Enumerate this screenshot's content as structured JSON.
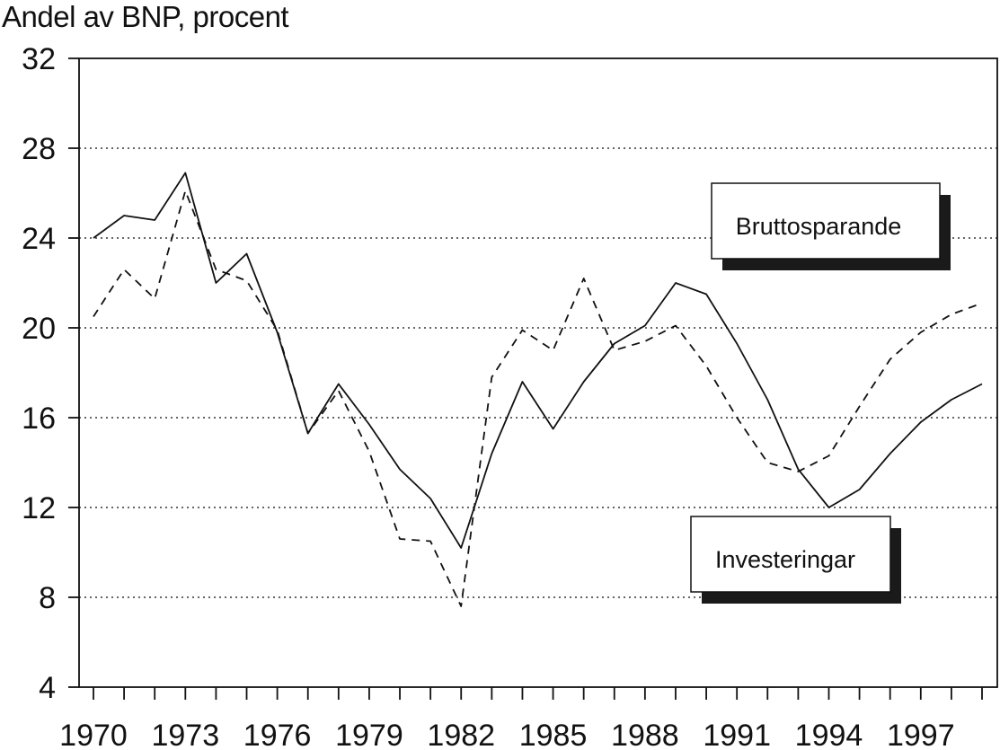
{
  "chart_data": {
    "type": "line",
    "ylabel": "Andel av BNP, procent",
    "ylim": [
      4,
      32
    ],
    "yticks": [
      "4",
      "8",
      "12",
      "16",
      "20",
      "24",
      "28",
      "32"
    ],
    "xticks": [
      "1970",
      "1973",
      "1976",
      "1979",
      "1982",
      "1985",
      "1988",
      "1991",
      "1994",
      "1997"
    ],
    "grid": "horizontal dotted",
    "x": [
      1970,
      1971,
      1972,
      1973,
      1974,
      1975,
      1976,
      1977,
      1978,
      1979,
      1980,
      1981,
      1982,
      1983,
      1984,
      1985,
      1986,
      1987,
      1988,
      1989,
      1990,
      1991,
      1992,
      1993,
      1994,
      1995,
      1996,
      1997,
      1998,
      1999
    ],
    "series": [
      {
        "name": "Bruttosparande",
        "style": "solid",
        "values": [
          24.0,
          25.0,
          24.8,
          26.9,
          22.0,
          23.3,
          19.8,
          15.3,
          17.5,
          15.7,
          13.7,
          12.4,
          10.2,
          14.4,
          17.6,
          15.5,
          17.6,
          19.3,
          20.1,
          22.0,
          21.5,
          19.3,
          16.8,
          13.7,
          12.0,
          12.8,
          14.4,
          15.8,
          16.8,
          17.5
        ]
      },
      {
        "name": "Investeringar",
        "style": "dashed",
        "values": [
          20.5,
          22.6,
          21.3,
          26.1,
          22.6,
          22.1,
          19.9,
          15.3,
          17.2,
          14.5,
          10.6,
          10.5,
          7.6,
          17.8,
          19.9,
          19.0,
          22.2,
          19.0,
          19.4,
          20.1,
          18.3,
          16.0,
          14.0,
          13.6,
          14.3,
          16.5,
          18.6,
          19.8,
          20.6,
          21.1
        ]
      }
    ],
    "legend": {
      "placement": "inline labels",
      "labels": [
        "Bruttosparande",
        "Investeringar"
      ]
    }
  }
}
